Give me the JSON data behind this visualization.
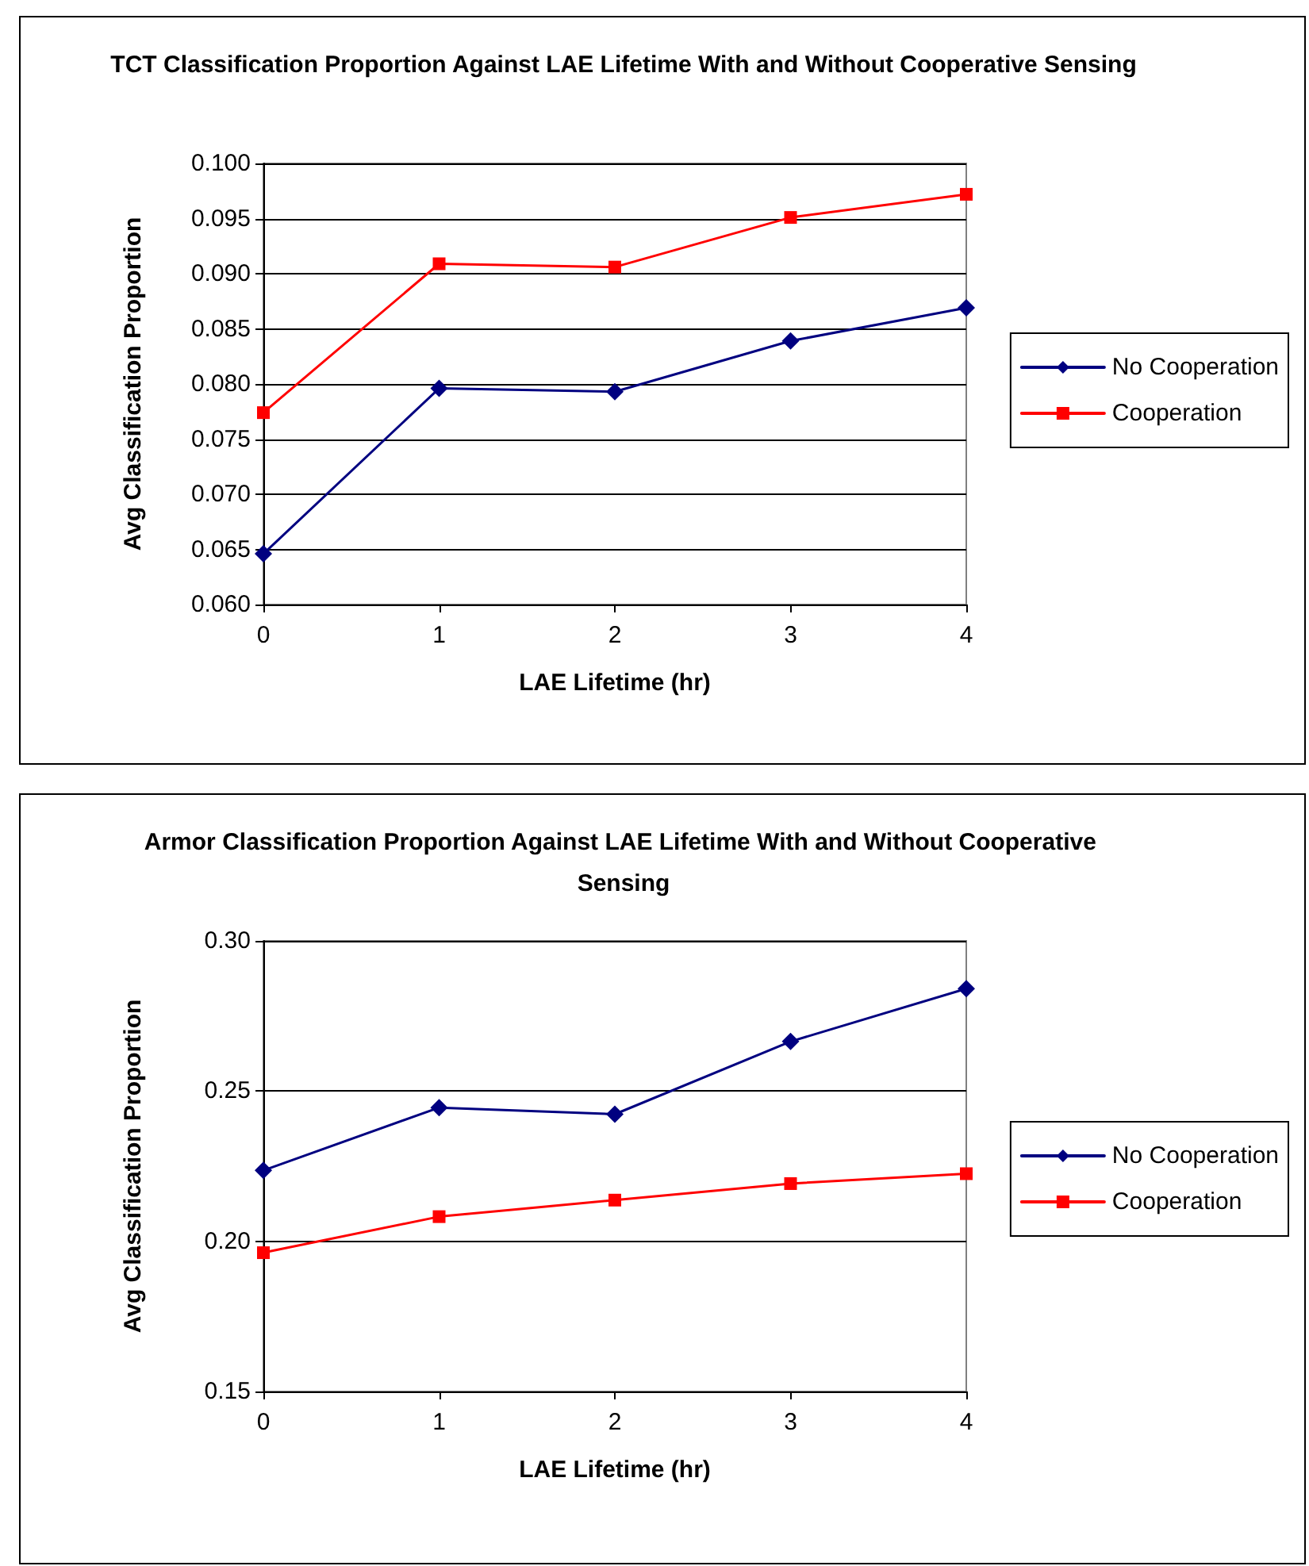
{
  "chart_data": [
    {
      "type": "line",
      "title": "TCT Classification Proportion Against LAE Lifetime With and Without Cooperative Sensing",
      "xlabel": "LAE Lifetime (hr)",
      "ylabel": "Avg Classification Proportion",
      "x": [
        0,
        1,
        2,
        3,
        4
      ],
      "xlim": [
        0,
        4
      ],
      "xticks": [
        0,
        1,
        2,
        3,
        4
      ],
      "ylim": [
        0.06,
        0.1
      ],
      "yticks": [
        {
          "value": 0.06,
          "label": "0.060"
        },
        {
          "value": 0.065,
          "label": "0.065"
        },
        {
          "value": 0.07,
          "label": "0.070"
        },
        {
          "value": 0.075,
          "label": "0.075"
        },
        {
          "value": 0.08,
          "label": "0.080"
        },
        {
          "value": 0.085,
          "label": "0.085"
        },
        {
          "value": 0.09,
          "label": "0.090"
        },
        {
          "value": 0.095,
          "label": "0.095"
        },
        {
          "value": 0.1,
          "label": "0.100"
        }
      ],
      "grid": "y",
      "legend": "right",
      "line_style": "solid",
      "series": [
        {
          "name": "No Cooperation",
          "color": "#000080",
          "marker": "diamond",
          "values": [
            0.0646,
            0.0796,
            0.0793,
            0.0839,
            0.0869
          ]
        },
        {
          "name": "Cooperation",
          "color": "#ff0000",
          "marker": "square",
          "values": [
            0.0774,
            0.0909,
            0.0906,
            0.0951,
            0.0972
          ]
        }
      ]
    },
    {
      "type": "line",
      "title": "Armor Classification Proportion Against LAE Lifetime With and Without Cooperative Sensing",
      "xlabel": "LAE Lifetime (hr)",
      "ylabel": "Avg Classification Proportion",
      "x": [
        0,
        1,
        2,
        3,
        4
      ],
      "xlim": [
        0,
        4
      ],
      "xticks": [
        0,
        1,
        2,
        3,
        4
      ],
      "ylim": [
        0.15,
        0.3
      ],
      "yticks": [
        {
          "value": 0.15,
          "label": "0.15"
        },
        {
          "value": 0.2,
          "label": "0.20"
        },
        {
          "value": 0.25,
          "label": "0.25"
        },
        {
          "value": 0.3,
          "label": "0.30"
        }
      ],
      "grid": "y",
      "legend": "right",
      "line_style": "solid",
      "series": [
        {
          "name": "No Cooperation",
          "color": "#000080",
          "marker": "diamond",
          "values": [
            0.2236,
            0.2445,
            0.2423,
            0.2665,
            0.2841
          ]
        },
        {
          "name": "Cooperation",
          "color": "#ff0000",
          "marker": "square",
          "values": [
            0.1962,
            0.2082,
            0.2137,
            0.2192,
            0.2225
          ]
        }
      ]
    }
  ]
}
